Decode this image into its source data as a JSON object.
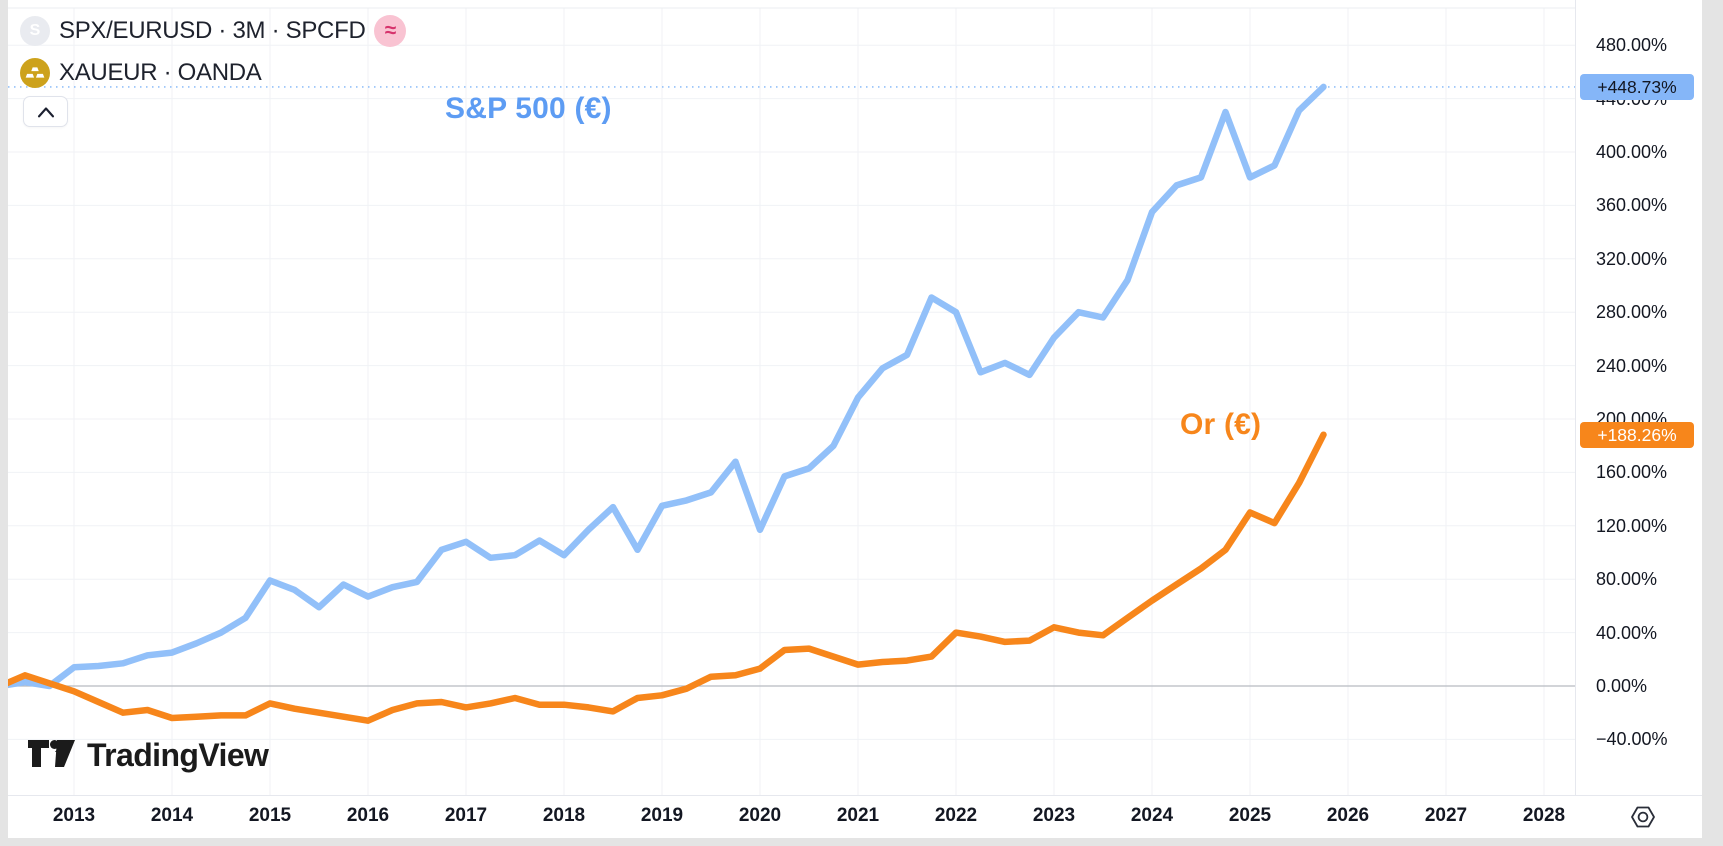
{
  "header": {
    "main_symbol_letter": "S",
    "main_symbol_title": "SPX/EURUSD · 3M · SPCFD",
    "approx_badge": "≈",
    "compare_symbol_title": "XAUEUR · OANDA"
  },
  "logo": {
    "text": "TradingView"
  },
  "colors": {
    "sp500_line": "#92c0f9",
    "sp500_label": "#5d9cf3",
    "sp500_badge_bg": "#85b6f8",
    "gold_line": "#f7861b",
    "gold_badge_bg": "#f7861b",
    "axis_text": "#131722",
    "grid": "#f0f2f6",
    "zero_line": "#b7bac1"
  },
  "chart_data": {
    "type": "line",
    "x_unit": "quarter (3M bars)",
    "x_first_point": "2012-Q2",
    "x_ticks_years": [
      2013,
      2014,
      2015,
      2016,
      2017,
      2018,
      2019,
      2020,
      2021,
      2022,
      2023,
      2024,
      2025,
      2026,
      2027,
      2028
    ],
    "y_axis": {
      "tick_labels": [
        "480.00%",
        "440.00%",
        "400.00%",
        "360.00%",
        "320.00%",
        "280.00%",
        "240.00%",
        "200.00%",
        "160.00%",
        "120.00%",
        "80.00%",
        "40.00%",
        "0.00%",
        "−40.00%"
      ],
      "tick_values": [
        480,
        440,
        400,
        360,
        320,
        280,
        240,
        200,
        160,
        120,
        80,
        40,
        0,
        -40
      ],
      "range_shown": [
        -40,
        480
      ]
    },
    "zero_line_value": 0,
    "level_line_value": 448.73,
    "legend_position": "on-chart text labels",
    "series": [
      {
        "name": "S&P 500 (€)",
        "color": "#92c0f9",
        "last_label": "+448.73%",
        "values": [
          0,
          3,
          0,
          14,
          15,
          17,
          23,
          25,
          32,
          40,
          51,
          79,
          72,
          59,
          76,
          67,
          74,
          78,
          102,
          108,
          96,
          98,
          109,
          98,
          117,
          134,
          102,
          135,
          139,
          145,
          168,
          117,
          157,
          163,
          180,
          216,
          238,
          248,
          291,
          280,
          235,
          242,
          233,
          261,
          280,
          276,
          304,
          355,
          375,
          381,
          430,
          381,
          390,
          431,
          448.73
        ]
      },
      {
        "name": "Or (€)",
        "color": "#f7861b",
        "last_label": "+188.26%",
        "values": [
          0,
          8,
          2,
          -4,
          -12,
          -20,
          -18,
          -24,
          -23,
          -22,
          -22,
          -13,
          -17,
          -20,
          -23,
          -26,
          -18,
          -13,
          -12,
          -16,
          -13,
          -9,
          -14,
          -14,
          -16,
          -19,
          -9,
          -7,
          -2,
          7,
          8,
          13,
          27,
          28,
          22,
          16,
          18,
          19,
          22,
          40,
          37,
          33,
          34,
          44,
          40,
          38,
          51,
          64,
          76,
          88,
          102,
          130,
          122,
          152,
          188.26
        ]
      }
    ]
  }
}
